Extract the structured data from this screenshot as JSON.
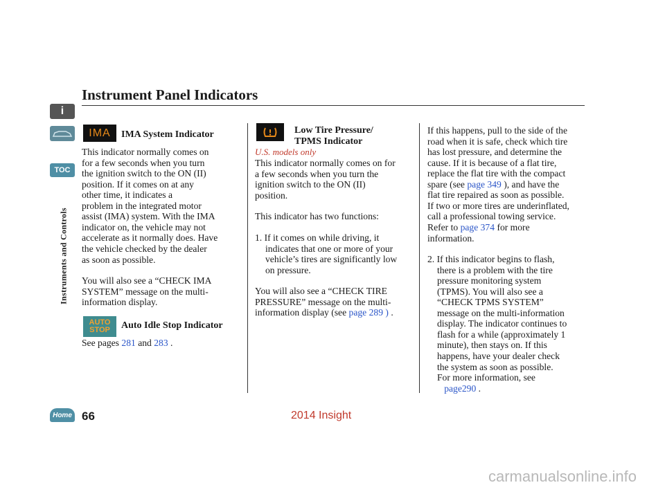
{
  "header": {
    "title": "Instrument Panel Indicators"
  },
  "sidebar": {
    "toc": "TOC",
    "section": "Instruments and Controls",
    "home": "Home"
  },
  "page_number": "66",
  "watermark": "2014 Insight",
  "site": "carmanualsonline.info",
  "ima": {
    "icon": "IMA",
    "heading": "IMA System Indicator",
    "paragraphs": [
      [
        "This indicator normally comes on",
        "for a few seconds when you turn",
        "the ignition switch to the ON (II)",
        "position. If it comes on at any",
        "other time, it indicates a",
        "problem in the integrated motor",
        "assist (IMA) system. With the IMA",
        "indicator on, the vehicle may not",
        "accelerate as it normally does. Have",
        "the vehicle checked by the dealer",
        "as soon as possible."
      ],
      [
        "You will also see a “CHECK IMA",
        "SYSTEM” message on the multi-",
        "information display."
      ]
    ]
  },
  "auto_stop": {
    "icon": "AUTO STOP",
    "heading": "Auto Idle Stop Indicator",
    "paragraphs": [
      [
        [
          "See pages",
          "281",
          "and",
          "283",
          "."
        ]
      ]
    ]
  },
  "tpms": {
    "heading": [
      "Low Tire Pressure/",
      "TPMS Indicator"
    ],
    "note": "U.S. models only",
    "paragraphs": [
      [
        "This indicator normally comes on for",
        "a few seconds when you turn the",
        "ignition switch to the ON (II)",
        "position."
      ],
      [
        "This indicator has two functions:"
      ],
      [
        "1. If it comes on while driving, it",
        "indicates that one or more of your",
        "vehicle’s tires are significantly low",
        "on pressure."
      ],
      [
        "You will also see a “CHECK TIRE",
        "PRESSURE” message on the multi-",
        [
          "information display (see",
          "page 289 )",
          "."
        ]
      ]
    ]
  },
  "continued": {
    "paragraphs": [
      [
        "If this happens, pull to the side of the",
        "road when it is safe, check which tire",
        "has lost pressure, and determine the",
        "cause. If it is because of a flat tire,",
        "replace the flat tire with the compact",
        [
          "spare (see",
          "page 349",
          "), and have the"
        ],
        "flat tire repaired as soon as possible.",
        "If two or more tires are underinflated,",
        "call a professional towing service.",
        [
          "Refer to",
          "page 374",
          "for more"
        ],
        "information."
      ],
      [
        "2. If this indicator begins to flash,",
        "there is a problem with the tire",
        "pressure monitoring system",
        "(TPMS). You will also see a",
        "“CHECK TPMS SYSTEM”",
        "message on the multi-information",
        "display. The indicator continues to",
        "flash for a while (approximately 1",
        "minute), then stays on. If this",
        "happens, have your dealer check",
        "the system as soon as possible.",
        "For more information, see",
        [
          "",
          "page290",
          "."
        ]
      ]
    ]
  }
}
